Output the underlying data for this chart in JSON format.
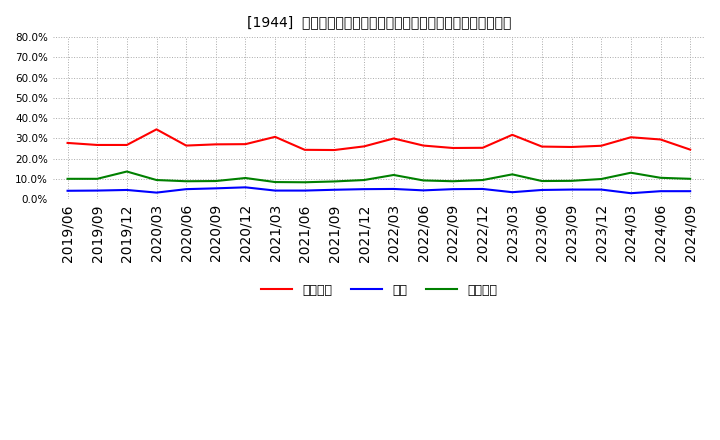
{
  "title": "[1944]  売上債権、在庫、買入債務の総資産に対する比率の推移",
  "ylim": [
    0.0,
    0.8
  ],
  "yticks": [
    0.0,
    0.1,
    0.2,
    0.3,
    0.4,
    0.5,
    0.6,
    0.7,
    0.8
  ],
  "ytick_labels": [
    "0.0%",
    "10.0%",
    "20.0%",
    "30.0%",
    "40.0%",
    "50.0%",
    "60.0%",
    "70.0%",
    "80.0%"
  ],
  "dates": [
    "2019/06",
    "2019/09",
    "2019/12",
    "2020/03",
    "2020/06",
    "2020/09",
    "2020/12",
    "2021/03",
    "2021/06",
    "2021/09",
    "2021/12",
    "2022/03",
    "2022/06",
    "2022/09",
    "2022/12",
    "2023/03",
    "2023/06",
    "2023/09",
    "2023/12",
    "2024/03",
    "2024/06",
    "2024/09"
  ],
  "urikake": [
    0.278,
    0.268,
    0.268,
    0.345,
    0.265,
    0.271,
    0.272,
    0.308,
    0.244,
    0.243,
    0.261,
    0.3,
    0.265,
    0.253,
    0.254,
    0.318,
    0.26,
    0.258,
    0.264,
    0.306,
    0.295,
    0.245
  ],
  "zaiko": [
    0.042,
    0.043,
    0.046,
    0.033,
    0.05,
    0.054,
    0.059,
    0.043,
    0.043,
    0.047,
    0.05,
    0.051,
    0.044,
    0.05,
    0.051,
    0.035,
    0.046,
    0.048,
    0.048,
    0.03,
    0.04,
    0.04
  ],
  "kaiire": [
    0.101,
    0.101,
    0.137,
    0.095,
    0.089,
    0.09,
    0.105,
    0.085,
    0.084,
    0.088,
    0.095,
    0.12,
    0.093,
    0.089,
    0.095,
    0.123,
    0.09,
    0.091,
    0.1,
    0.131,
    0.106,
    0.101
  ],
  "urikake_color": "#ff0000",
  "zaiko_color": "#0000ff",
  "kaiire_color": "#008000",
  "legend_labels": [
    "売上債権",
    "在庫",
    "買入債務"
  ],
  "background_color": "#ffffff",
  "grid_color": "#aaaaaa",
  "title_fontsize": 11,
  "tick_fontsize": 7.5,
  "legend_fontsize": 9,
  "line_width": 1.5
}
